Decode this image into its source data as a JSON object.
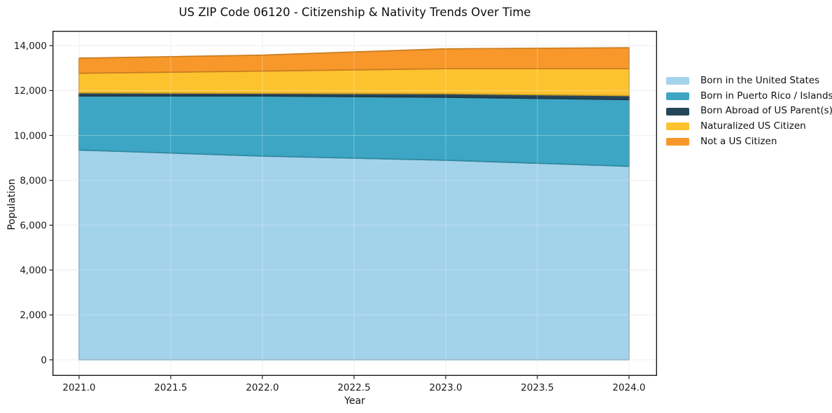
{
  "title": "US ZIP Code 06120 - Citizenship & Nativity Trends Over Time",
  "chart_data": {
    "type": "area",
    "stacked": true,
    "title": "US ZIP Code 06120 - Citizenship & Nativity Trends Over Time",
    "xlabel": "Year",
    "ylabel": "Population",
    "x": [
      2021,
      2022,
      2023,
      2024
    ],
    "series": [
      {
        "name": "Born in the United States",
        "color": "#A3D3EA",
        "values": [
          9350,
          9080,
          8895,
          8625
        ]
      },
      {
        "name": "Born in Puerto Rico / Islands",
        "color": "#3CA6C4",
        "values": [
          2410,
          2680,
          2810,
          2975
        ]
      },
      {
        "name": "Born Abroad of US Parent(s)",
        "color": "#26455A",
        "values": [
          140,
          120,
          155,
          175
        ]
      },
      {
        "name": "Naturalized US Citizen",
        "color": "#FCC32F",
        "values": [
          870,
          990,
          1115,
          1200
        ]
      },
      {
        "name": "Not a US Citizen",
        "color": "#F8982A",
        "values": [
          675,
          710,
          885,
          935
        ]
      }
    ],
    "stacked_totals": [
      13445,
      13580,
      13860,
      13910
    ],
    "x_ticks": [
      {
        "value": 2021.0,
        "label": "2021.0"
      },
      {
        "value": 2021.5,
        "label": "2021.5"
      },
      {
        "value": 2022.0,
        "label": "2022.0"
      },
      {
        "value": 2022.5,
        "label": "2022.5"
      },
      {
        "value": 2023.0,
        "label": "2023.0"
      },
      {
        "value": 2023.5,
        "label": "2023.5"
      },
      {
        "value": 2024.0,
        "label": "2024.0"
      }
    ],
    "y_ticks": [
      {
        "value": 0,
        "label": "0"
      },
      {
        "value": 2000,
        "label": "2,000"
      },
      {
        "value": 4000,
        "label": "4,000"
      },
      {
        "value": 6000,
        "label": "6,000"
      },
      {
        "value": 8000,
        "label": "8,000"
      },
      {
        "value": 10000,
        "label": "10,000"
      },
      {
        "value": 12000,
        "label": "12,000"
      },
      {
        "value": 14000,
        "label": "14,000"
      }
    ],
    "xlim": [
      2020.855,
      2024.153
    ],
    "ylim": [
      -718,
      14664
    ],
    "grid": true,
    "legend_position": "right",
    "colors": {
      "grid": "#e8e8e8",
      "frame": "#1a1a1a",
      "background": "#ffffff"
    }
  }
}
